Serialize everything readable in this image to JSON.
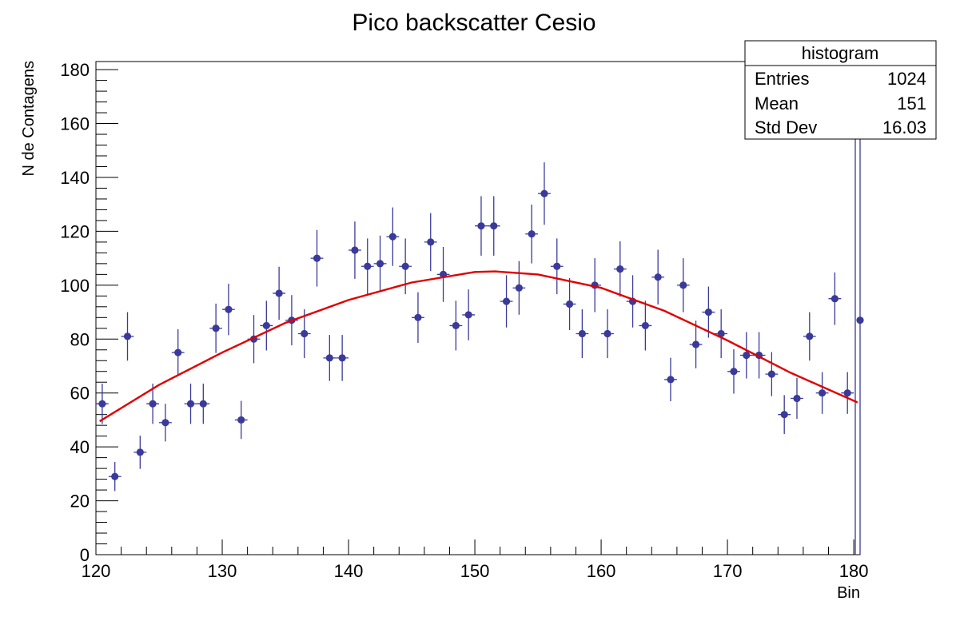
{
  "chart_data": {
    "type": "scatter",
    "title": "Pico backscatter Cesio",
    "xlabel": "Bin",
    "ylabel": "N de Contagens",
    "xlim": [
      120,
      180.5
    ],
    "ylim": [
      0,
      183
    ],
    "xticks": [
      120,
      130,
      140,
      150,
      160,
      170,
      180
    ],
    "yticks": [
      0,
      20,
      40,
      60,
      80,
      100,
      120,
      140,
      160,
      180
    ],
    "bin_width": 1,
    "series": [
      {
        "color": "#3a3a9a",
        "x": [
          120.5,
          121.5,
          122.5,
          123.5,
          124.5,
          125.5,
          126.5,
          127.5,
          128.5,
          129.5,
          130.5,
          131.5,
          132.5,
          133.5,
          134.5,
          135.5,
          136.5,
          137.5,
          138.5,
          139.5,
          140.5,
          141.5,
          142.5,
          143.5,
          144.5,
          145.5,
          146.5,
          147.5,
          148.5,
          149.5,
          150.5,
          151.5,
          152.5,
          153.5,
          154.5,
          155.5,
          156.5,
          157.5,
          158.5,
          159.5,
          160.5,
          161.5,
          162.5,
          163.5,
          164.5,
          165.5,
          166.5,
          167.5,
          168.5,
          169.5,
          170.5,
          171.5,
          172.5,
          173.5,
          174.5,
          175.5,
          176.5,
          177.5,
          178.5,
          179.5,
          180.5
        ],
        "y": [
          56,
          29,
          81,
          38,
          56,
          49,
          75,
          56,
          56,
          84,
          91,
          50,
          80,
          85,
          97,
          87,
          82,
          110,
          73,
          73,
          113,
          107,
          108,
          118,
          107,
          88,
          116,
          104,
          85,
          89,
          122,
          122,
          94,
          99,
          119,
          134,
          107,
          93,
          82,
          100,
          82,
          106,
          94,
          85,
          103,
          65,
          100,
          78,
          90,
          82,
          68,
          74,
          74,
          67,
          52,
          58,
          81,
          60,
          95,
          60,
          87
        ]
      },
      {
        "type": "line",
        "color": "#e00000",
        "x": [
          120.3,
          125,
          130,
          135,
          140,
          145,
          150,
          151.6,
          155,
          160,
          165,
          170,
          175,
          180.3
        ],
        "y": [
          49.5,
          63,
          75,
          86,
          94.5,
          101,
          104.9,
          105.1,
          104,
          99,
          90.5,
          79.5,
          67.5,
          56.5
        ]
      }
    ],
    "stats_box": {
      "title": "histogram",
      "rows": [
        {
          "label": "Entries",
          "value": "1024"
        },
        {
          "label": "Mean",
          "value": "151"
        },
        {
          "label": "Std Dev",
          "value": "16.03"
        }
      ]
    }
  }
}
